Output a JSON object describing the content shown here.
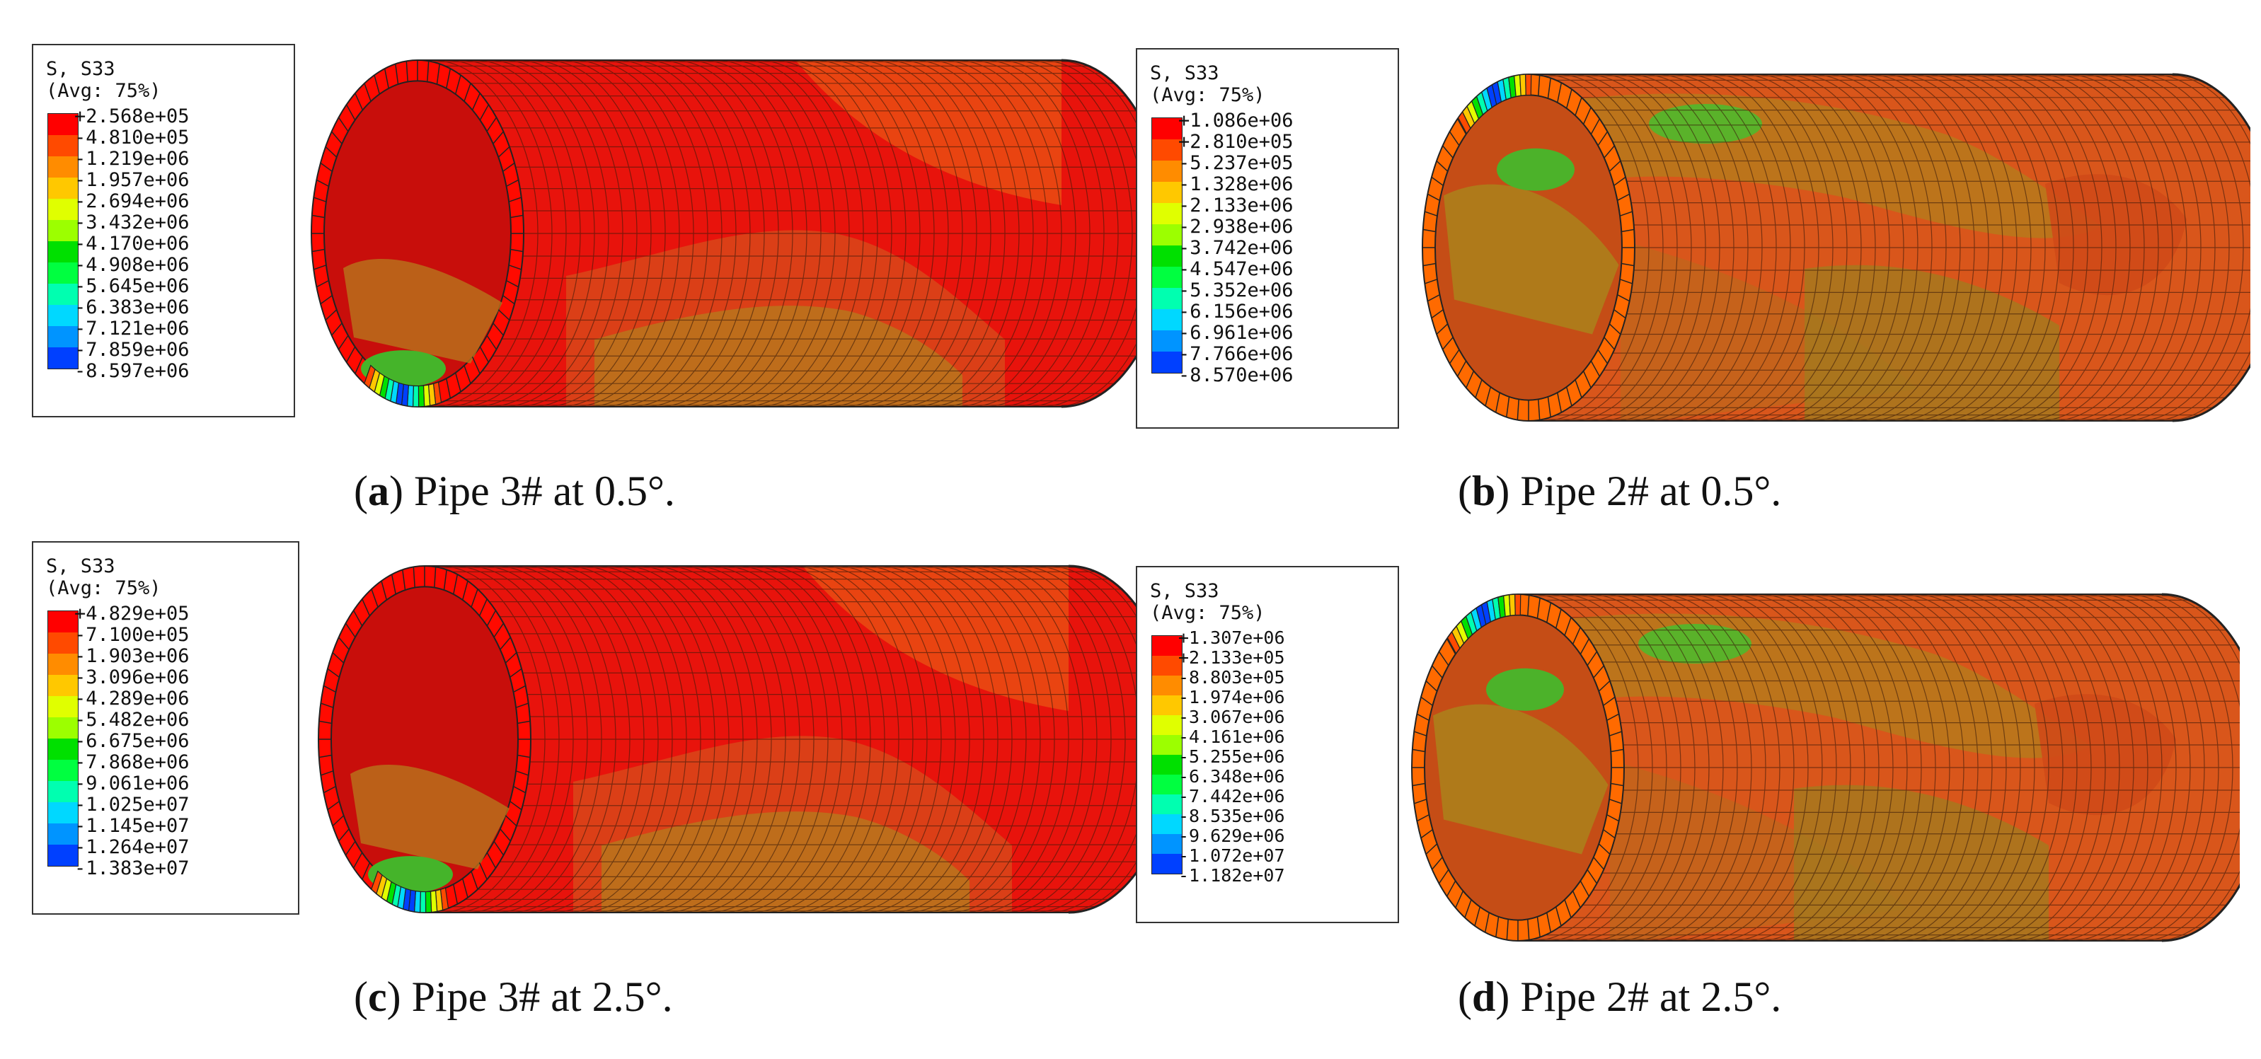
{
  "palette": [
    "#ff0000",
    "#ff4a00",
    "#ff8c00",
    "#ffc800",
    "#e0ff00",
    "#9cff00",
    "#00e000",
    "#00ff40",
    "#00ffb0",
    "#00d8ff",
    "#0094ff",
    "#0040ff",
    "#0000ff"
  ],
  "panels": [
    {
      "legend": {
        "title": "S, S33",
        "subtitle": "(Avg: 75%)",
        "values": [
          "+2.568e+05",
          "-4.810e+05",
          "-1.219e+06",
          "-1.957e+06",
          "-2.694e+06",
          "-3.432e+06",
          "-4.170e+06",
          "-4.908e+06",
          "-5.645e+06",
          "-6.383e+06",
          "-7.121e+06",
          "-7.859e+06",
          "-8.597e+06"
        ]
      },
      "caption": {
        "letter": "a",
        "text": " Pipe 3# at 0.5°."
      }
    },
    {
      "legend": {
        "title": "S, S33",
        "subtitle": "(Avg: 75%)",
        "values": [
          "+1.086e+06",
          "+2.810e+05",
          "-5.237e+05",
          "-1.328e+06",
          "-2.133e+06",
          "-2.938e+06",
          "-3.742e+06",
          "-4.547e+06",
          "-5.352e+06",
          "-6.156e+06",
          "-6.961e+06",
          "-7.766e+06",
          "-8.570e+06"
        ]
      },
      "caption": {
        "letter": "b",
        "text": " Pipe 2# at 0.5°."
      }
    },
    {
      "legend": {
        "title": "S, S33",
        "subtitle": "(Avg: 75%)",
        "values": [
          "+4.829e+05",
          "-7.100e+05",
          "-1.903e+06",
          "-3.096e+06",
          "-4.289e+06",
          "-5.482e+06",
          "-6.675e+06",
          "-7.868e+06",
          "-9.061e+06",
          "-1.025e+07",
          "-1.145e+07",
          "-1.264e+07",
          "-1.383e+07"
        ]
      },
      "caption": {
        "letter": "c",
        "text": " Pipe 3# at 2.5°."
      }
    },
    {
      "legend": {
        "title": "S, S33",
        "subtitle": "(Avg: 75%)",
        "values": [
          "+1.307e+06",
          "+2.133e+05",
          "-8.803e+05",
          "-1.974e+06",
          "-3.067e+06",
          "-4.161e+06",
          "-5.255e+06",
          "-6.348e+06",
          "-7.442e+06",
          "-8.535e+06",
          "-9.629e+06",
          "-1.072e+07",
          "-1.182e+07"
        ]
      },
      "caption": {
        "letter": "d",
        "text": " Pipe 2# at 2.5°."
      }
    }
  ]
}
